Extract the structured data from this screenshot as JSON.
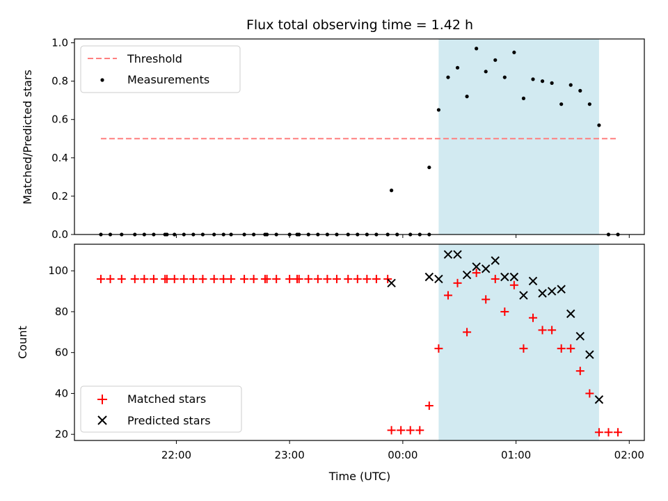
{
  "figure": {
    "title": "Flux total observing time = 1.42 h",
    "xlabel": "Time (UTC)",
    "x_ticks": [
      "22:00",
      "23:00",
      "00:00",
      "01:00",
      "02:00"
    ]
  },
  "colors": {
    "threshold": "#ff7f7f",
    "measurements": "#000000",
    "matched": "#ff0000",
    "predicted": "#000000",
    "shade": "#add8e6"
  },
  "chart_data": [
    {
      "type": "scatter",
      "ylabel": "Matched/Predicted stars",
      "xlim": [
        "21:06",
        "02:08"
      ],
      "ylim": [
        0,
        1.02
      ],
      "y_ticks": [
        "0.0",
        "0.2",
        "0.4",
        "0.6",
        "0.8",
        "1.0"
      ],
      "shaded_span": [
        "00:19",
        "01:44"
      ],
      "legend": {
        "placement": "top-left",
        "entries": [
          "Threshold",
          "Measurements"
        ]
      },
      "threshold": {
        "name": "Threshold",
        "y": 0.5,
        "x_range": [
          "21:20",
          "01:54"
        ]
      },
      "series": [
        {
          "name": "Measurements",
          "points": [
            [
              "21:20",
              0
            ],
            [
              "21:25",
              0
            ],
            [
              "21:31",
              0
            ],
            [
              "21:38",
              0
            ],
            [
              "21:43",
              0
            ],
            [
              "21:48",
              0
            ],
            [
              "21:54",
              0
            ],
            [
              "21:55",
              0
            ],
            [
              "21:59",
              0
            ],
            [
              "22:04",
              0
            ],
            [
              "22:09",
              0
            ],
            [
              "22:14",
              0
            ],
            [
              "22:20",
              0
            ],
            [
              "22:25",
              0
            ],
            [
              "22:29",
              0
            ],
            [
              "22:36",
              0
            ],
            [
              "22:41",
              0
            ],
            [
              "22:47",
              0
            ],
            [
              "22:48",
              0
            ],
            [
              "22:53",
              0
            ],
            [
              "23:00",
              0
            ],
            [
              "23:04",
              0
            ],
            [
              "23:05",
              0
            ],
            [
              "23:10",
              0
            ],
            [
              "23:15",
              0
            ],
            [
              "23:20",
              0
            ],
            [
              "23:25",
              0
            ],
            [
              "23:31",
              0
            ],
            [
              "23:36",
              0
            ],
            [
              "23:41",
              0
            ],
            [
              "23:46",
              0
            ],
            [
              "23:52",
              0
            ],
            [
              "23:57",
              0
            ],
            [
              "23:54",
              0.23
            ],
            [
              "00:04",
              0
            ],
            [
              "00:09",
              0
            ],
            [
              "00:14",
              0
            ],
            [
              "00:14",
              0.35
            ],
            [
              "00:19",
              0.65
            ],
            [
              "00:24",
              0.82
            ],
            [
              "00:29",
              0.87
            ],
            [
              "00:34",
              0.72
            ],
            [
              "00:39",
              0.97
            ],
            [
              "00:44",
              0.85
            ],
            [
              "00:49",
              0.91
            ],
            [
              "00:54",
              0.82
            ],
            [
              "00:59",
              0.95
            ],
            [
              "01:04",
              0.71
            ],
            [
              "01:09",
              0.81
            ],
            [
              "01:14",
              0.8
            ],
            [
              "01:19",
              0.79
            ],
            [
              "01:24",
              0.68
            ],
            [
              "01:29",
              0.78
            ],
            [
              "01:34",
              0.75
            ],
            [
              "01:39",
              0.68
            ],
            [
              "01:44",
              0.57
            ],
            [
              "01:49",
              0
            ],
            [
              "01:54",
              0
            ]
          ]
        }
      ]
    },
    {
      "type": "scatter",
      "ylabel": "Count",
      "xlim": [
        "21:06",
        "02:08"
      ],
      "ylim": [
        17,
        113
      ],
      "y_ticks": [
        "20",
        "40",
        "60",
        "80",
        "100"
      ],
      "shaded_span": [
        "00:19",
        "01:44"
      ],
      "legend": {
        "placement": "bottom-left",
        "entries": [
          "Matched stars",
          "Predicted stars"
        ]
      },
      "series": [
        {
          "name": "Matched stars",
          "marker": "plus",
          "points": [
            [
              "21:20",
              96
            ],
            [
              "21:25",
              96
            ],
            [
              "21:31",
              96
            ],
            [
              "21:38",
              96
            ],
            [
              "21:43",
              96
            ],
            [
              "21:48",
              96
            ],
            [
              "21:54",
              96
            ],
            [
              "21:55",
              96
            ],
            [
              "21:59",
              96
            ],
            [
              "22:04",
              96
            ],
            [
              "22:09",
              96
            ],
            [
              "22:14",
              96
            ],
            [
              "22:20",
              96
            ],
            [
              "22:25",
              96
            ],
            [
              "22:29",
              96
            ],
            [
              "22:36",
              96
            ],
            [
              "22:41",
              96
            ],
            [
              "22:47",
              96
            ],
            [
              "22:48",
              96
            ],
            [
              "22:53",
              96
            ],
            [
              "23:00",
              96
            ],
            [
              "23:04",
              96
            ],
            [
              "23:05",
              96
            ],
            [
              "23:10",
              96
            ],
            [
              "23:15",
              96
            ],
            [
              "23:20",
              96
            ],
            [
              "23:25",
              96
            ],
            [
              "23:31",
              96
            ],
            [
              "23:36",
              96
            ],
            [
              "23:41",
              96
            ],
            [
              "23:46",
              96
            ],
            [
              "23:52",
              96
            ],
            [
              "23:54",
              22
            ],
            [
              "23:59",
              22
            ],
            [
              "00:04",
              22
            ],
            [
              "00:09",
              22
            ],
            [
              "00:14",
              34
            ],
            [
              "00:19",
              62
            ],
            [
              "00:24",
              88
            ],
            [
              "00:29",
              94
            ],
            [
              "00:34",
              70
            ],
            [
              "00:39",
              99
            ],
            [
              "00:44",
              86
            ],
            [
              "00:49",
              96
            ],
            [
              "00:54",
              80
            ],
            [
              "00:59",
              93
            ],
            [
              "01:04",
              62
            ],
            [
              "01:09",
              77
            ],
            [
              "01:14",
              71
            ],
            [
              "01:19",
              71
            ],
            [
              "01:24",
              62
            ],
            [
              "01:29",
              62
            ],
            [
              "01:34",
              51
            ],
            [
              "01:39",
              40
            ],
            [
              "01:44",
              21
            ],
            [
              "01:49",
              21
            ],
            [
              "01:54",
              21
            ]
          ]
        },
        {
          "name": "Predicted stars",
          "marker": "x",
          "points": [
            [
              "23:54",
              94
            ],
            [
              "00:14",
              97
            ],
            [
              "00:19",
              96
            ],
            [
              "00:24",
              108
            ],
            [
              "00:29",
              108
            ],
            [
              "00:34",
              98
            ],
            [
              "00:39",
              102
            ],
            [
              "00:44",
              101
            ],
            [
              "00:49",
              105
            ],
            [
              "00:54",
              97
            ],
            [
              "00:59",
              97
            ],
            [
              "01:04",
              88
            ],
            [
              "01:09",
              95
            ],
            [
              "01:14",
              89
            ],
            [
              "01:19",
              90
            ],
            [
              "01:24",
              91
            ],
            [
              "01:29",
              79
            ],
            [
              "01:34",
              68
            ],
            [
              "01:39",
              59
            ],
            [
              "01:44",
              37
            ]
          ]
        }
      ]
    }
  ]
}
